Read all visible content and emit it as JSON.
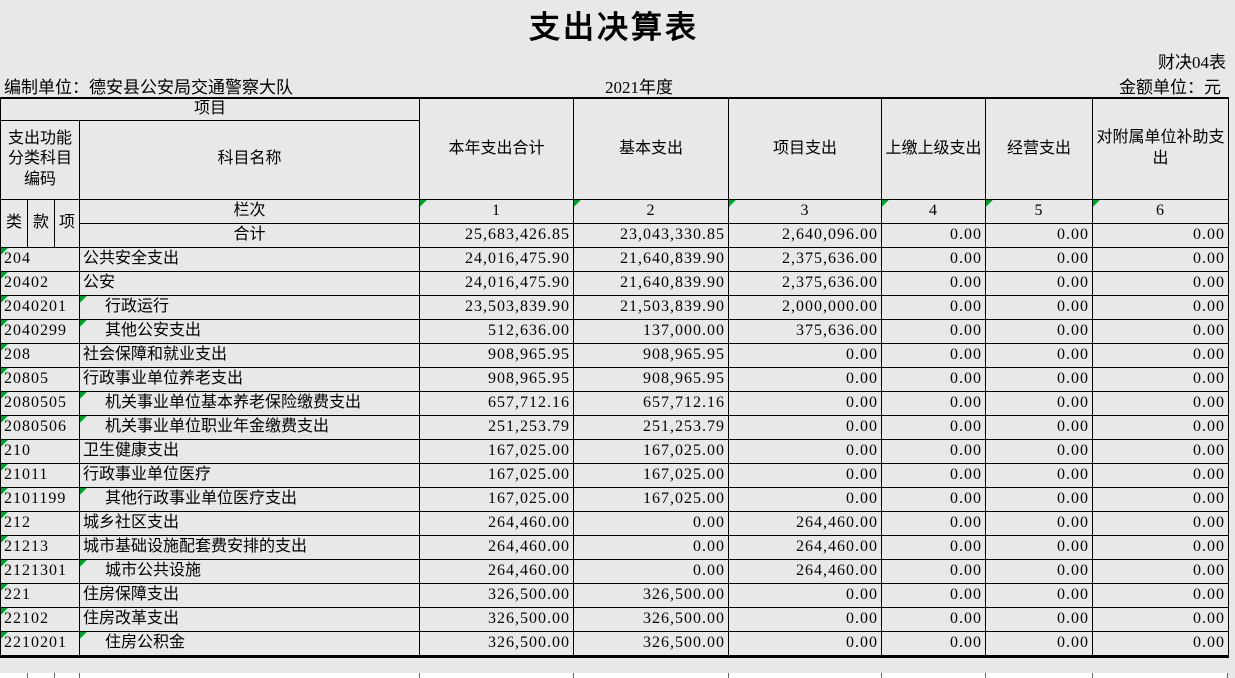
{
  "page": {
    "title": "支出决算表",
    "form_code": "财决04表",
    "prepared_by": "编制单位：德安县公安局交通警察大队",
    "period": "2021年度",
    "amount_unit": "金额单位：元"
  },
  "table": {
    "project_header": "项目",
    "code_header": "支出功能分类科目编码",
    "subject_name_header": "科目名称",
    "code_sub_headers": [
      "类",
      "款",
      "项"
    ],
    "row_index_label": "栏次",
    "column_headers": [
      "本年支出合计",
      "基本支出",
      "项目支出",
      "上缴上级支出",
      "经营支出",
      "对附属单位补助支出"
    ],
    "column_numbers": [
      "1",
      "2",
      "3",
      "4",
      "5",
      "6"
    ],
    "total_row": {
      "label": "合计",
      "values": [
        "25,683,426.85",
        "23,043,330.85",
        "2,640,096.00",
        "0.00",
        "0.00",
        "0.00"
      ]
    },
    "rows": [
      {
        "code": "204",
        "name": "公共安全支出",
        "indent": false,
        "values": [
          "24,016,475.90",
          "21,640,839.90",
          "2,375,636.00",
          "0.00",
          "0.00",
          "0.00"
        ]
      },
      {
        "code": "20402",
        "name": "公安",
        "indent": false,
        "values": [
          "24,016,475.90",
          "21,640,839.90",
          "2,375,636.00",
          "0.00",
          "0.00",
          "0.00"
        ]
      },
      {
        "code": "2040201",
        "name": "行政运行",
        "indent": true,
        "values": [
          "23,503,839.90",
          "21,503,839.90",
          "2,000,000.00",
          "0.00",
          "0.00",
          "0.00"
        ]
      },
      {
        "code": "2040299",
        "name": "其他公安支出",
        "indent": true,
        "values": [
          "512,636.00",
          "137,000.00",
          "375,636.00",
          "0.00",
          "0.00",
          "0.00"
        ]
      },
      {
        "code": "208",
        "name": "社会保障和就业支出",
        "indent": false,
        "values": [
          "908,965.95",
          "908,965.95",
          "0.00",
          "0.00",
          "0.00",
          "0.00"
        ]
      },
      {
        "code": "20805",
        "name": "行政事业单位养老支出",
        "indent": false,
        "values": [
          "908,965.95",
          "908,965.95",
          "0.00",
          "0.00",
          "0.00",
          "0.00"
        ]
      },
      {
        "code": "2080505",
        "name": "机关事业单位基本养老保险缴费支出",
        "indent": true,
        "values": [
          "657,712.16",
          "657,712.16",
          "0.00",
          "0.00",
          "0.00",
          "0.00"
        ]
      },
      {
        "code": "2080506",
        "name": "机关事业单位职业年金缴费支出",
        "indent": true,
        "values": [
          "251,253.79",
          "251,253.79",
          "0.00",
          "0.00",
          "0.00",
          "0.00"
        ]
      },
      {
        "code": "210",
        "name": "卫生健康支出",
        "indent": false,
        "values": [
          "167,025.00",
          "167,025.00",
          "0.00",
          "0.00",
          "0.00",
          "0.00"
        ]
      },
      {
        "code": "21011",
        "name": "行政事业单位医疗",
        "indent": false,
        "values": [
          "167,025.00",
          "167,025.00",
          "0.00",
          "0.00",
          "0.00",
          "0.00"
        ]
      },
      {
        "code": "2101199",
        "name": "其他行政事业单位医疗支出",
        "indent": true,
        "values": [
          "167,025.00",
          "167,025.00",
          "0.00",
          "0.00",
          "0.00",
          "0.00"
        ]
      },
      {
        "code": "212",
        "name": "城乡社区支出",
        "indent": false,
        "values": [
          "264,460.00",
          "0.00",
          "264,460.00",
          "0.00",
          "0.00",
          "0.00"
        ]
      },
      {
        "code": "21213",
        "name": "城市基础设施配套费安排的支出",
        "indent": false,
        "values": [
          "264,460.00",
          "0.00",
          "264,460.00",
          "0.00",
          "0.00",
          "0.00"
        ]
      },
      {
        "code": "2121301",
        "name": "城市公共设施",
        "indent": true,
        "values": [
          "264,460.00",
          "0.00",
          "264,460.00",
          "0.00",
          "0.00",
          "0.00"
        ]
      },
      {
        "code": "221",
        "name": "住房保障支出",
        "indent": false,
        "values": [
          "326,500.00",
          "326,500.00",
          "0.00",
          "0.00",
          "0.00",
          "0.00"
        ]
      },
      {
        "code": "22102",
        "name": "住房改革支出",
        "indent": false,
        "values": [
          "326,500.00",
          "326,500.00",
          "0.00",
          "0.00",
          "0.00",
          "0.00"
        ]
      },
      {
        "code": "2210201",
        "name": "住房公积金",
        "indent": true,
        "values": [
          "326,500.00",
          "326,500.00",
          "0.00",
          "0.00",
          "0.00",
          "0.00"
        ]
      }
    ]
  },
  "colors": {
    "background": "#e8e8e8",
    "error_indicator_green": "#00a028"
  }
}
